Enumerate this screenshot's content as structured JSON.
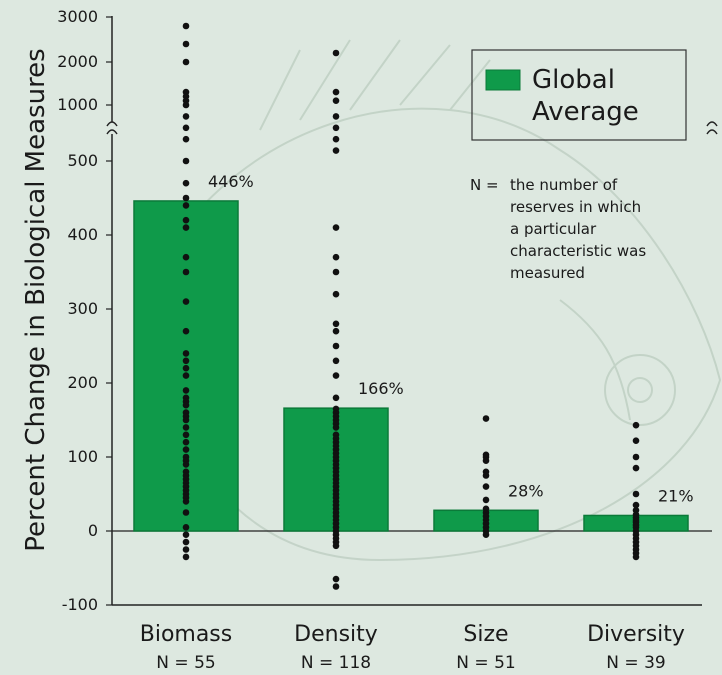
{
  "chart_data": {
    "type": "bar",
    "ylabel": "Percent Change in Biological Measures",
    "legend": {
      "label_line1": "Global",
      "label_line2": "Average",
      "placement": "top-right"
    },
    "note": {
      "prefix": "N =",
      "lines": [
        "the number of",
        "reserves in which",
        "a particular",
        "characteristic was",
        "measured"
      ]
    },
    "y_ticks_lower": [
      -100,
      0,
      100,
      200,
      300,
      400,
      500
    ],
    "y_ticks_upper": [
      1000,
      2000,
      3000
    ],
    "axis_break": true,
    "categories": [
      {
        "name": "Biomass",
        "n_label": "N = 55",
        "value": 446,
        "value_label": "446%"
      },
      {
        "name": "Density",
        "n_label": "N = 118",
        "value": 166,
        "value_label": "166%"
      },
      {
        "name": "Size",
        "n_label": "N = 51",
        "value": 28,
        "value_label": "28%"
      },
      {
        "name": "Diversity",
        "n_label": "N = 39",
        "value": 21,
        "value_label": "21%"
      }
    ],
    "points": {
      "Biomass": [
        2800,
        2400,
        2000,
        1300,
        1200,
        1100,
        1000,
        900,
        800,
        700,
        500,
        470,
        450,
        440,
        420,
        410,
        370,
        350,
        310,
        270,
        240,
        230,
        220,
        210,
        190,
        180,
        175,
        170,
        160,
        155,
        150,
        140,
        130,
        120,
        110,
        100,
        95,
        90,
        80,
        75,
        70,
        65,
        60,
        55,
        50,
        45,
        40,
        25,
        5,
        -5,
        -15,
        -25,
        -35
      ],
      "Density": [
        2200,
        1300,
        1100,
        900,
        800,
        700,
        600,
        410,
        370,
        350,
        320,
        280,
        270,
        250,
        230,
        210,
        180,
        165,
        160,
        155,
        150,
        145,
        140,
        130,
        125,
        120,
        115,
        110,
        105,
        100,
        95,
        90,
        85,
        80,
        75,
        70,
        65,
        60,
        55,
        50,
        45,
        40,
        35,
        30,
        25,
        20,
        15,
        10,
        5,
        0,
        -5,
        -10,
        -15,
        -20,
        -65,
        -75
      ],
      "Size": [
        152,
        103,
        100,
        95,
        80,
        75,
        60,
        42,
        30,
        25,
        20,
        15,
        10,
        5,
        0,
        -5
      ],
      "Diversity": [
        143,
        122,
        100,
        85,
        50,
        35,
        28,
        22,
        18,
        15,
        12,
        8,
        5,
        0,
        -5,
        -10,
        -15,
        -20,
        -25,
        -30,
        -35
      ]
    },
    "colors": {
      "bar": "#0f9a4a",
      "bar_stroke": "#0b7a39",
      "dot": "#111111",
      "axis": "#222222",
      "background": "#dde8e0"
    }
  }
}
